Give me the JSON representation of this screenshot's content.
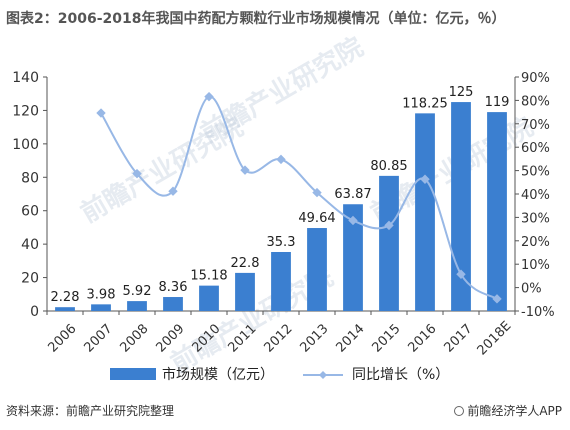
{
  "title": "图表2：2006-2018年我国中药配方颗粒行业市场规模情况（单位：亿元，％）",
  "footer": {
    "source": "资料来源：前瞻产业研究院整理",
    "brand": "前瞻经济学人APP"
  },
  "watermark": "前瞻产业研究院",
  "colors": {
    "bar": "#3b7fd0",
    "line": "#98b8e6",
    "axis": "#555555"
  },
  "chart_data": {
    "type": "bar",
    "categories": [
      "2006",
      "2007",
      "2008",
      "2009",
      "2010",
      "2011",
      "2012",
      "2013",
      "2014",
      "2015",
      "2016",
      "2017",
      "2018E"
    ],
    "series": [
      {
        "name": "市场规模（亿元）",
        "type": "bar",
        "axis": "left",
        "values": [
          2.28,
          3.98,
          5.92,
          8.36,
          15.18,
          22.8,
          35.3,
          49.64,
          63.87,
          80.85,
          118.25,
          125,
          119
        ],
        "labels": [
          "2.28",
          "3.98",
          "5.92",
          "8.36",
          "15.18",
          "22.8",
          "35.3",
          "49.64",
          "63.87",
          "80.85",
          "118.25",
          "125",
          "119"
        ]
      },
      {
        "name": "同比增长（%）",
        "type": "line",
        "axis": "right",
        "values": [
          null,
          74.6,
          48.7,
          41.2,
          81.6,
          50.2,
          54.8,
          40.6,
          28.7,
          26.6,
          46.3,
          5.7,
          -4.8
        ]
      }
    ],
    "y_left": {
      "min": 0,
      "max": 140,
      "ticks": [
        "0",
        "20",
        "40",
        "60",
        "80",
        "100",
        "120",
        "140"
      ]
    },
    "y_right": {
      "min": -10,
      "max": 90,
      "ticks": [
        "-10%",
        "0%",
        "10%",
        "20%",
        "30%",
        "40%",
        "50%",
        "60%",
        "70%",
        "80%",
        "90%"
      ]
    },
    "grid": false,
    "legend_position": "bottom"
  }
}
